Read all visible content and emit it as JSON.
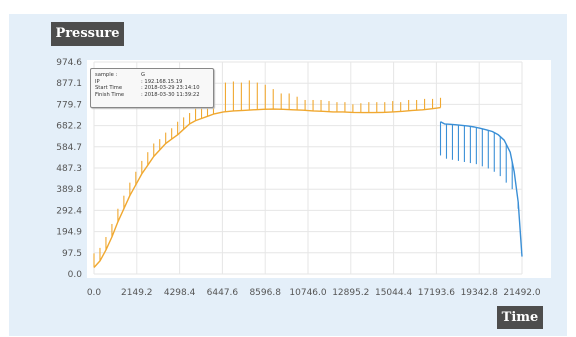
{
  "chart_data": {
    "type": "line",
    "title": "",
    "ylabel": "Pressure",
    "xlabel": "Time",
    "xlim": [
      0,
      21492
    ],
    "ylim": [
      0,
      974.6
    ],
    "x_ticks": [
      "0.0",
      "2149.2",
      "4298.4",
      "6447.6",
      "8596.8",
      "10746.0",
      "12895.2",
      "15044.4",
      "17193.6",
      "19342.8",
      "21492.0"
    ],
    "y_ticks": [
      "974.6",
      "877.1",
      "779.7",
      "682.2",
      "584.7",
      "487.3",
      "389.8",
      "292.4",
      "194.9",
      "97.5",
      "0.0"
    ],
    "grid": true,
    "colors": {
      "loading": "#f0a830",
      "unloading": "#3a8fd6",
      "grid": "#e6e6e6",
      "panel": "#e4eff9"
    },
    "series": [
      {
        "color": "#f0a830",
        "x": [
          0,
          300,
          600,
          900,
          1200,
          1500,
          1800,
          2100,
          2400,
          2700,
          3000,
          3300,
          3600,
          3900,
          4200,
          4500,
          4800,
          5100,
          5400,
          5700,
          6000,
          6500,
          7000,
          7500,
          8000,
          8500,
          9000,
          9500,
          10000,
          10500,
          11000,
          11500,
          12000,
          12500,
          13000,
          13500,
          14000,
          14500,
          15000,
          15500,
          16000,
          16500,
          17000,
          17400
        ],
        "y": [
          30,
          60,
          110,
          170,
          240,
          300,
          360,
          410,
          460,
          500,
          540,
          570,
          600,
          620,
          640,
          665,
          690,
          705,
          715,
          725,
          735,
          745,
          750,
          752,
          755,
          757,
          758,
          757,
          755,
          753,
          750,
          748,
          745,
          745,
          743,
          742,
          742,
          743,
          745,
          748,
          752,
          755,
          760,
          765
        ],
        "spikes": [
          [
            0,
            95
          ],
          [
            300,
            120
          ],
          [
            600,
            170
          ],
          [
            900,
            230
          ],
          [
            1200,
            300
          ],
          [
            1500,
            360
          ],
          [
            1800,
            420
          ],
          [
            2100,
            470
          ],
          [
            2400,
            520
          ],
          [
            2700,
            560
          ],
          [
            3000,
            600
          ],
          [
            3300,
            620
          ],
          [
            3600,
            650
          ],
          [
            3900,
            670
          ],
          [
            4200,
            700
          ],
          [
            4500,
            720
          ],
          [
            4800,
            740
          ],
          [
            5100,
            765
          ],
          [
            5400,
            785
          ],
          [
            5700,
            810
          ],
          [
            6000,
            820
          ],
          [
            6600,
            880
          ],
          [
            7000,
            885
          ],
          [
            7400,
            880
          ],
          [
            7800,
            890
          ],
          [
            8200,
            880
          ],
          [
            8600,
            870
          ],
          [
            9000,
            850
          ],
          [
            9400,
            830
          ],
          [
            9800,
            830
          ],
          [
            10200,
            815
          ],
          [
            10600,
            800
          ],
          [
            11000,
            800
          ],
          [
            11400,
            800
          ],
          [
            11800,
            795
          ],
          [
            12200,
            790
          ],
          [
            12600,
            790
          ],
          [
            13000,
            780
          ],
          [
            13400,
            785
          ],
          [
            13800,
            790
          ],
          [
            14200,
            790
          ],
          [
            14600,
            790
          ],
          [
            15000,
            795
          ],
          [
            15400,
            790
          ],
          [
            15800,
            800
          ],
          [
            16200,
            800
          ],
          [
            16600,
            805
          ],
          [
            17000,
            805
          ],
          [
            17400,
            810
          ]
        ]
      },
      {
        "color": "#3a8fd6",
        "x": [
          17400,
          17600,
          17900,
          18200,
          18500,
          18800,
          19100,
          19400,
          19700,
          20000,
          20300,
          20600,
          20900,
          21100,
          21300,
          21492
        ],
        "y": [
          700,
          690,
          688,
          686,
          683,
          680,
          676,
          670,
          663,
          655,
          640,
          615,
          560,
          470,
          330,
          80
        ],
        "spikes": [
          [
            17400,
            545
          ],
          [
            17700,
            530
          ],
          [
            18000,
            525
          ],
          [
            18300,
            520
          ],
          [
            18600,
            515
          ],
          [
            18900,
            510
          ],
          [
            19200,
            505
          ],
          [
            19500,
            495
          ],
          [
            19800,
            485
          ],
          [
            20100,
            470
          ],
          [
            20400,
            450
          ],
          [
            20700,
            420
          ],
          [
            21000,
            390
          ],
          [
            21300,
            300
          ]
        ]
      }
    ]
  },
  "info": {
    "rows": [
      {
        "key": "sample :",
        "value": "G"
      },
      {
        "key": "IP",
        "value": ": 192.168.15.19"
      },
      {
        "key": "Start Time",
        "value": ": 2018-03-29 23:14:10"
      },
      {
        "key": "Finish Time",
        "value": ": 2018-03-30 11:39:22"
      }
    ]
  }
}
